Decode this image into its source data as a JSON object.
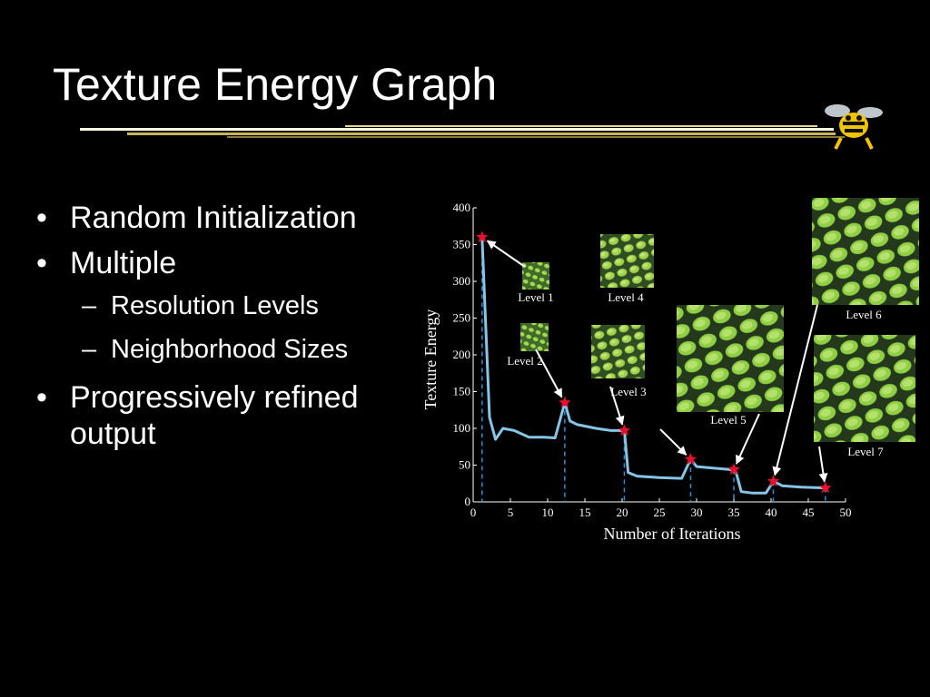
{
  "slide": {
    "title": "Texture Energy Graph",
    "bullets": [
      {
        "level": 1,
        "marker": "•",
        "text": "Random Initialization"
      },
      {
        "level": 1,
        "marker": "•",
        "text": "Multiple"
      },
      {
        "level": 2,
        "marker": "–",
        "text": "Resolution Levels"
      },
      {
        "level": 2,
        "marker": "–",
        "text": "Neighborhood Sizes"
      },
      {
        "level": 1,
        "marker": "•",
        "text": "Progressively refined output"
      }
    ],
    "mascot_icon": "yellow-jacket-mascot-icon"
  },
  "colors": {
    "background": "#000000",
    "text": "#ffffff",
    "rule": "#d8c878",
    "curve": "#87c5e6",
    "marker": "#e8112d",
    "guide": "#2e8fd0",
    "arrow": "#ffffff"
  },
  "chart_data": {
    "type": "line",
    "title": "",
    "xlabel": "Number of Iterations",
    "ylabel": "Texture Energy",
    "xlim": [
      0,
      50
    ],
    "ylim": [
      0,
      400
    ],
    "xticks": [
      0,
      5,
      10,
      15,
      20,
      25,
      30,
      35,
      40,
      45,
      50
    ],
    "yticks": [
      0,
      50,
      100,
      150,
      200,
      250,
      300,
      350,
      400
    ],
    "grid": false,
    "series": [
      {
        "x": [
          1.2,
          2.2,
          3.0,
          4.0,
          5.5,
          7.5,
          9.5,
          11.0,
          12.3,
          13.0,
          14.0,
          16.5,
          18.5,
          20.3,
          20.8,
          22.0,
          25.0,
          28.0,
          29.2,
          30.0,
          31.0,
          34.5,
          35.3,
          36.0,
          37.5,
          39.3,
          40.3,
          41.5,
          44.0,
          47.3
        ],
        "y": [
          360,
          115,
          85,
          100,
          97,
          88,
          88,
          87,
          135,
          110,
          105,
          100,
          97,
          97,
          40,
          35,
          33,
          32,
          58,
          48,
          47,
          44,
          40,
          14,
          12,
          12,
          28,
          22,
          20,
          19
        ]
      }
    ],
    "stars": [
      {
        "x": 1.2,
        "y": 360
      },
      {
        "x": 12.3,
        "y": 135
      },
      {
        "x": 20.3,
        "y": 97
      },
      {
        "x": 29.2,
        "y": 58
      },
      {
        "x": 35.0,
        "y": 44
      },
      {
        "x": 40.3,
        "y": 28
      },
      {
        "x": 47.3,
        "y": 19
      }
    ],
    "annotations": [
      {
        "label": "Level 1"
      },
      {
        "label": "Level 2"
      },
      {
        "label": "Level 3"
      },
      {
        "label": "Level 4"
      },
      {
        "label": "Level 5"
      },
      {
        "label": "Level 6"
      },
      {
        "label": "Level 7"
      }
    ]
  }
}
